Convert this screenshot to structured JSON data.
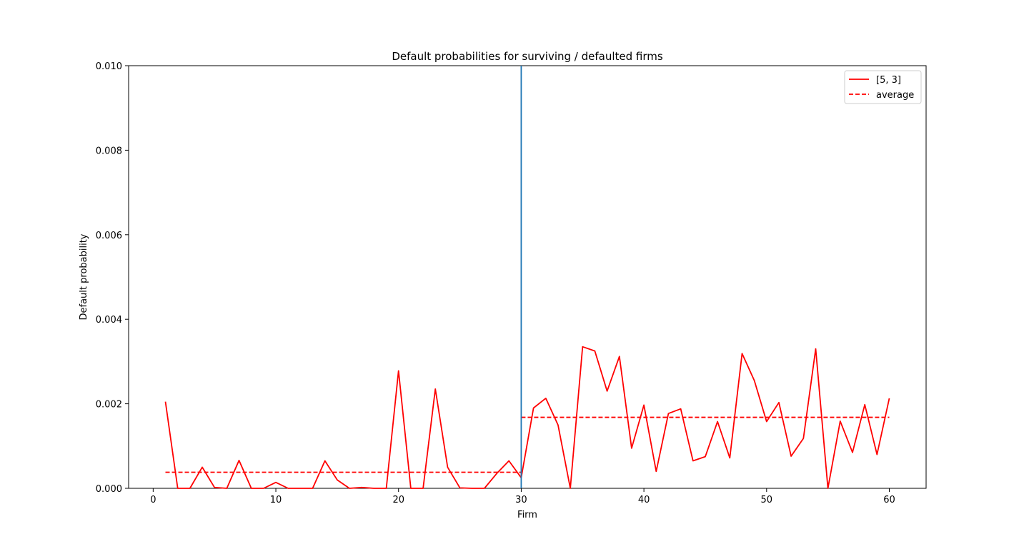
{
  "chart_data": {
    "type": "line",
    "title": "Default probabilities for surviving / defaulted firms",
    "xlabel": "Firm",
    "ylabel": "Default probability",
    "xlim": [
      -2,
      63
    ],
    "ylim": [
      0,
      0.01
    ],
    "xticks": [
      0,
      10,
      20,
      30,
      40,
      50,
      60
    ],
    "xtick_labels": [
      "0",
      "10",
      "20",
      "30",
      "40",
      "50",
      "60"
    ],
    "yticks": [
      0.0,
      0.002,
      0.004,
      0.006,
      0.008,
      0.01
    ],
    "ytick_labels": [
      "0.000",
      "0.002",
      "0.004",
      "0.006",
      "0.008",
      "0.010"
    ],
    "grid": false,
    "legend_position": "top-right",
    "series": [
      {
        "name": "[5, 3]",
        "color": "#ff0000",
        "style": "solid",
        "x": [
          1,
          2,
          3,
          4,
          5,
          6,
          7,
          8,
          9,
          10,
          11,
          12,
          13,
          14,
          15,
          16,
          17,
          18,
          19,
          20,
          21,
          22,
          23,
          24,
          25,
          26,
          27,
          28,
          29,
          30,
          31,
          32,
          33,
          34,
          35,
          36,
          37,
          38,
          39,
          40,
          41,
          42,
          43,
          44,
          45,
          46,
          47,
          48,
          49,
          50,
          51,
          52,
          53,
          54,
          55,
          56,
          57,
          58,
          59,
          60
        ],
        "y": [
          0.00205,
          0.0,
          0.0,
          0.0005,
          2e-05,
          0.0,
          0.00066,
          0.0,
          0.0,
          0.00014,
          0.0,
          0.0,
          0.0,
          0.00065,
          0.0002,
          0.0,
          2e-05,
          0.0,
          0.0,
          0.00278,
          0.0,
          0.0,
          0.00235,
          0.0005,
          1e-05,
          0.0,
          0.0,
          0.00035,
          0.00065,
          0.00025,
          0.0019,
          0.00213,
          0.0015,
          0.0,
          0.00335,
          0.00325,
          0.0023,
          0.00312,
          0.00095,
          0.00197,
          0.0004,
          0.00177,
          0.00188,
          0.00065,
          0.00075,
          0.00158,
          0.00072,
          0.00319,
          0.00255,
          0.00158,
          0.00203,
          0.00076,
          0.00118,
          0.0033,
          0.0,
          0.00159,
          0.00085,
          0.00198,
          0.0008,
          0.00213
        ]
      },
      {
        "name": "average",
        "color": "#ff0000",
        "style": "dashed",
        "segments": [
          {
            "x": [
              1,
              30
            ],
            "y": [
              0.00038,
              0.00038
            ]
          },
          {
            "x": [
              30,
              60
            ],
            "y": [
              0.00168,
              0.00168
            ]
          }
        ]
      }
    ],
    "vertical_line": {
      "x": 30,
      "color": "#1f77b4"
    }
  }
}
